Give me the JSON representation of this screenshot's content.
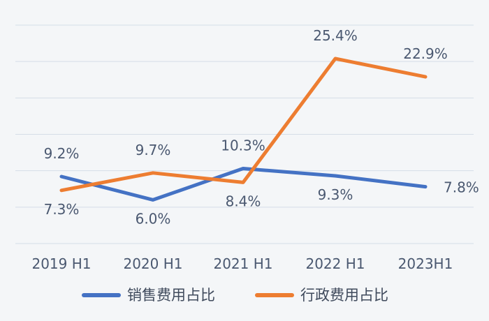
{
  "chart_data": {
    "type": "line",
    "categories": [
      "2019 H1",
      "2020 H1",
      "2021 H1",
      "2022 H1",
      "2023H1"
    ],
    "ylim": [
      0,
      30
    ],
    "grid": true,
    "legend_position": "bottom",
    "series": [
      {
        "name": "销售费用占比",
        "color": "#4472c4",
        "values": [
          9.2,
          6.0,
          10.3,
          9.3,
          7.8
        ],
        "labels": [
          "9.2%",
          "6.0%",
          "10.3%",
          "9.3%",
          "7.8%"
        ]
      },
      {
        "name": "行政费用占比",
        "color": "#ed7d31",
        "values": [
          7.3,
          9.7,
          8.4,
          25.4,
          22.9
        ],
        "labels": [
          "7.3%",
          "9.7%",
          "8.4%",
          "25.4%",
          "22.9%"
        ]
      }
    ]
  }
}
